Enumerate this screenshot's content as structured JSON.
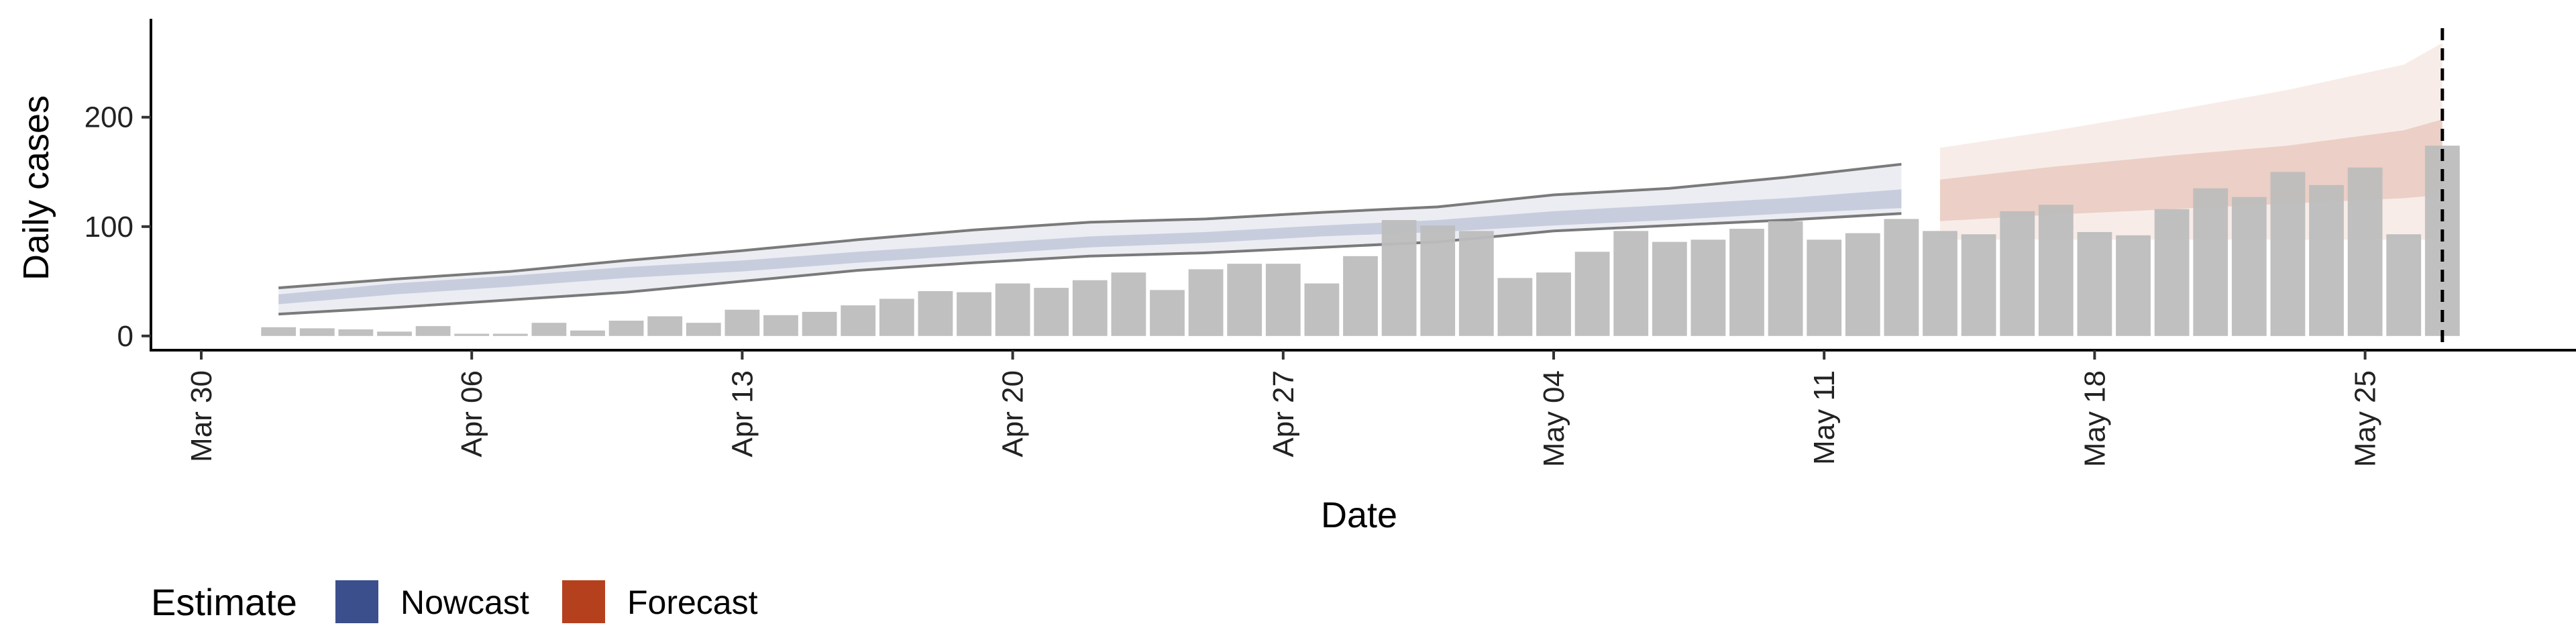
{
  "chart_data": {
    "type": "bar",
    "xlabel": "Date",
    "ylabel": "Daily cases",
    "ylim": [
      -13,
      290
    ],
    "y_ticks": [
      0,
      100,
      200
    ],
    "x_ticks": [
      "Mar 30",
      "Apr 06",
      "Apr 13",
      "Apr 20",
      "Apr 27",
      "May 04",
      "May 11",
      "May 18",
      "May 25"
    ],
    "grid": false,
    "legend": {
      "title": "Estimate",
      "position": "bottom-left",
      "entries": [
        "Nowcast",
        "Forecast"
      ]
    },
    "colors": {
      "bars": "#bdbdbd",
      "nowcast": "#3a4f8c",
      "forecast": "#b5401d",
      "band_line": "#7a7a7a",
      "ref_line": "#000000"
    },
    "reference_line": {
      "date": "May 27",
      "style": "dashed"
    },
    "bars": {
      "dates": [
        "Apr 01",
        "Apr 02",
        "Apr 03",
        "Apr 04",
        "Apr 05",
        "Apr 06",
        "Apr 07",
        "Apr 08",
        "Apr 09",
        "Apr 10",
        "Apr 11",
        "Apr 12",
        "Apr 13",
        "Apr 14",
        "Apr 15",
        "Apr 16",
        "Apr 17",
        "Apr 18",
        "Apr 19",
        "Apr 20",
        "Apr 21",
        "Apr 22",
        "Apr 23",
        "Apr 24",
        "Apr 25",
        "Apr 26",
        "Apr 27",
        "Apr 28",
        "Apr 29",
        "Apr 30",
        "May 01",
        "May 02",
        "May 03",
        "May 04",
        "May 05",
        "May 06",
        "May 07",
        "May 08",
        "May 09",
        "May 10",
        "May 11",
        "May 12",
        "May 13",
        "May 14",
        "May 15",
        "May 16",
        "May 17",
        "May 18",
        "May 19",
        "May 20",
        "May 21",
        "May 22",
        "May 23",
        "May 24",
        "May 25",
        "May 26",
        "May 27"
      ],
      "values": [
        8,
        7,
        6,
        4,
        9,
        2,
        2,
        12,
        5,
        14,
        18,
        12,
        24,
        19,
        22,
        28,
        34,
        41,
        40,
        48,
        44,
        51,
        58,
        42,
        61,
        66,
        66,
        48,
        73,
        106,
        101,
        96,
        53,
        58,
        77,
        96,
        86,
        88,
        98,
        105,
        88,
        94,
        107,
        96,
        93,
        114,
        120,
        95,
        92,
        116,
        135,
        127,
        150,
        138,
        154,
        93,
        174
      ]
    },
    "nowcast": {
      "dates": [
        "Apr 01",
        "Apr 04",
        "Apr 07",
        "Apr 10",
        "Apr 13",
        "Apr 16",
        "Apr 19",
        "Apr 22",
        "Apr 25",
        "Apr 28",
        "May 01",
        "May 04",
        "May 07",
        "May 10",
        "May 13"
      ],
      "median": [
        33,
        43,
        50,
        58,
        64,
        72,
        79,
        86,
        90,
        96,
        101,
        108,
        113,
        119,
        126
      ],
      "inner_low": [
        29,
        38,
        45,
        53,
        59,
        67,
        74,
        81,
        85,
        91,
        95,
        101,
        106,
        112,
        117
      ],
      "inner_high": [
        38,
        48,
        55,
        63,
        69,
        77,
        84,
        91,
        95,
        101,
        106,
        114,
        120,
        126,
        134
      ],
      "outer_low": [
        20,
        26,
        33,
        40,
        50,
        60,
        67,
        73,
        76,
        81,
        86,
        96,
        101,
        106,
        112
      ],
      "outer_high": [
        44,
        52,
        59,
        69,
        78,
        88,
        97,
        104,
        107,
        113,
        118,
        129,
        135,
        145,
        157
      ]
    },
    "forecast": {
      "dates": [
        "May 14",
        "May 17",
        "May 20",
        "May 23",
        "May 26",
        "May 27"
      ],
      "inner_low": [
        105,
        111,
        116,
        121,
        126,
        129
      ],
      "inner_high": [
        143,
        155,
        165,
        174,
        188,
        198
      ],
      "outer_low": [
        88,
        88,
        88,
        88,
        88,
        88
      ],
      "outer_high": [
        172,
        188,
        206,
        225,
        248,
        268
      ]
    }
  }
}
